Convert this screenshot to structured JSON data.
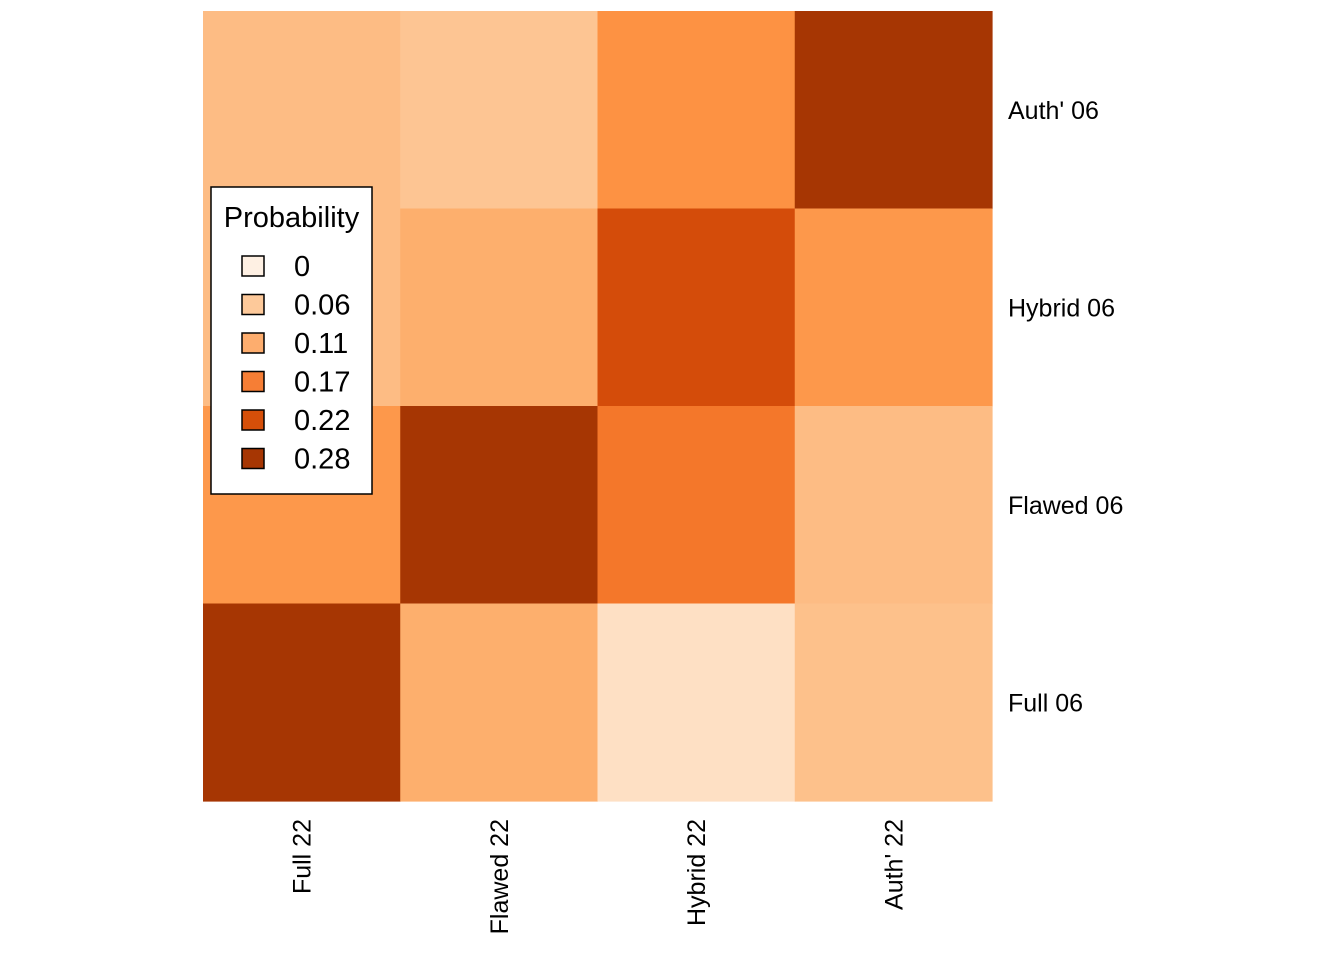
{
  "chart_data": {
    "type": "heatmap",
    "x_categories": [
      "Full 22",
      "Flawed 22",
      "Hybrid 22",
      "Auth' 22"
    ],
    "y_categories": [
      "Auth' 06",
      "Hybrid 06",
      "Flawed 06",
      "Full 06"
    ],
    "values": [
      [
        0.08,
        0.06,
        0.16,
        0.28
      ],
      [
        0.08,
        0.11,
        0.24,
        0.15
      ],
      [
        0.15,
        0.28,
        0.19,
        0.08
      ],
      [
        0.28,
        0.11,
        0.01,
        0.07
      ]
    ],
    "color_scale": {
      "min": 0,
      "max": 0.28,
      "stops": [
        "#fee6ce",
        "#fdc796",
        "#fdae6b",
        "#fd8d3c",
        "#e6550d",
        "#a63603"
      ]
    },
    "legend": {
      "title": "Probability",
      "placement": "left",
      "entries": [
        {
          "label": "0",
          "color": "#fef0e3"
        },
        {
          "label": "0.06",
          "color": "#fdc99a"
        },
        {
          "label": "0.11",
          "color": "#fdad6e"
        },
        {
          "label": "0.17",
          "color": "#f67e35"
        },
        {
          "label": "0.22",
          "color": "#d64f09"
        },
        {
          "label": "0.28",
          "color": "#a63603"
        }
      ]
    },
    "title": "",
    "xlabel": "",
    "ylabel": "",
    "grid": false
  }
}
